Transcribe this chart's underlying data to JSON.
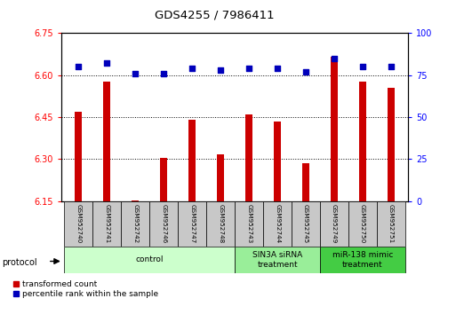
{
  "title": "GDS4255 / 7986411",
  "samples": [
    "GSM952740",
    "GSM952741",
    "GSM952742",
    "GSM952746",
    "GSM952747",
    "GSM952748",
    "GSM952743",
    "GSM952744",
    "GSM952745",
    "GSM952749",
    "GSM952750",
    "GSM952751"
  ],
  "transformed_count": [
    6.47,
    6.575,
    6.152,
    6.305,
    6.44,
    6.315,
    6.46,
    6.435,
    6.285,
    6.665,
    6.575,
    6.555
  ],
  "percentile_rank": [
    80,
    82,
    76,
    76,
    79,
    78,
    79,
    79,
    77,
    85,
    80,
    80
  ],
  "groups": [
    {
      "label": "control",
      "start": 0,
      "end": 6,
      "color": "#ccffcc"
    },
    {
      "label": "SIN3A siRNA\ntreatment",
      "start": 6,
      "end": 9,
      "color": "#99ee99"
    },
    {
      "label": "miR-138 mimic\ntreatment",
      "start": 9,
      "end": 12,
      "color": "#44cc44"
    }
  ],
  "ylim_left": [
    6.15,
    6.75
  ],
  "ylim_right": [
    0,
    100
  ],
  "yticks_left": [
    6.15,
    6.3,
    6.45,
    6.6,
    6.75
  ],
  "yticks_right": [
    0,
    25,
    50,
    75,
    100
  ],
  "bar_color": "#cc0000",
  "dot_color": "#0000bb",
  "legend_items": [
    "transformed count",
    "percentile rank within the sample"
  ],
  "bar_width": 0.25,
  "sample_box_color": "#c8c8c8"
}
